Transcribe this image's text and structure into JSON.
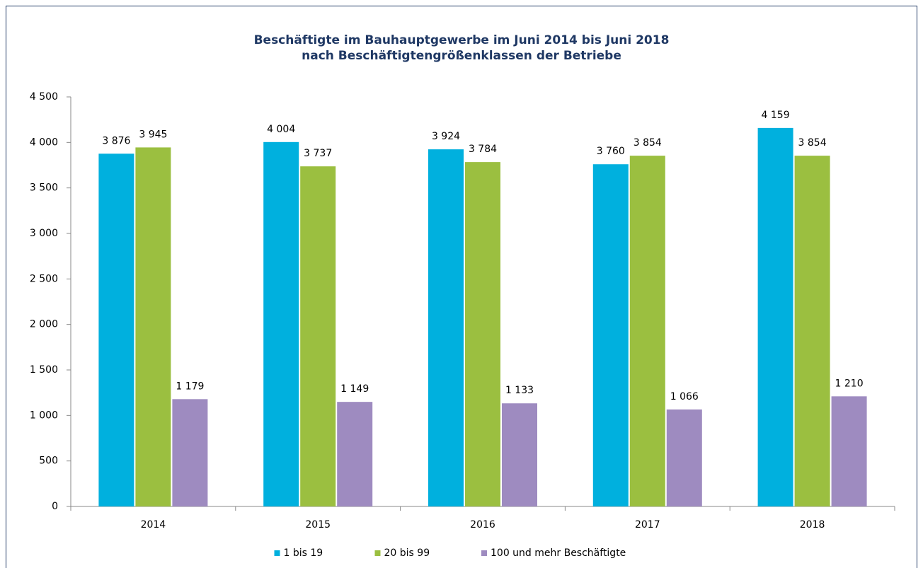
{
  "chart_data": {
    "type": "bar",
    "title": "Beschäftigte im Bauhauptgewerbe im Juni 2014 bis Juni 2018",
    "subtitle": "nach Beschäftigtengrößenklassen der Betriebe",
    "categories": [
      "2014",
      "2015",
      "2016",
      "2017",
      "2018"
    ],
    "series": [
      {
        "name": "1 bis 19",
        "color": "#00b0de",
        "values": [
          3876,
          4004,
          3924,
          3760,
          4159
        ],
        "value_labels": [
          "3 876",
          "4 004",
          "3 924",
          "3 760",
          "4 159"
        ]
      },
      {
        "name": "20 bis 99",
        "color": "#9bbf40",
        "values": [
          3945,
          3737,
          3784,
          3854,
          3854
        ],
        "value_labels": [
          "3 945",
          "3 737",
          "3 784",
          "3 854",
          "3 854"
        ]
      },
      {
        "name": "100 und mehr Beschäftigte",
        "color": "#9e8bc0",
        "values": [
          1179,
          1149,
          1133,
          1066,
          1210
        ],
        "value_labels": [
          "1 179",
          "1 149",
          "1 133",
          "1 066",
          "1 210"
        ]
      }
    ],
    "ylim": [
      0,
      4500
    ],
    "yticks": [
      0,
      500,
      {
        "value": 1000,
        "label": "1 000"
      },
      {
        "value": 1500,
        "label": "1 500"
      },
      {
        "value": 2000,
        "label": "2 000"
      },
      {
        "value": 2500,
        "label": "2 500"
      },
      {
        "value": 3000,
        "label": "3 000"
      },
      {
        "value": 3500,
        "label": "3 500"
      },
      {
        "value": 4000,
        "label": "4 000"
      },
      {
        "value": 4500,
        "label": "4 500"
      }
    ],
    "legend": "bottom"
  }
}
